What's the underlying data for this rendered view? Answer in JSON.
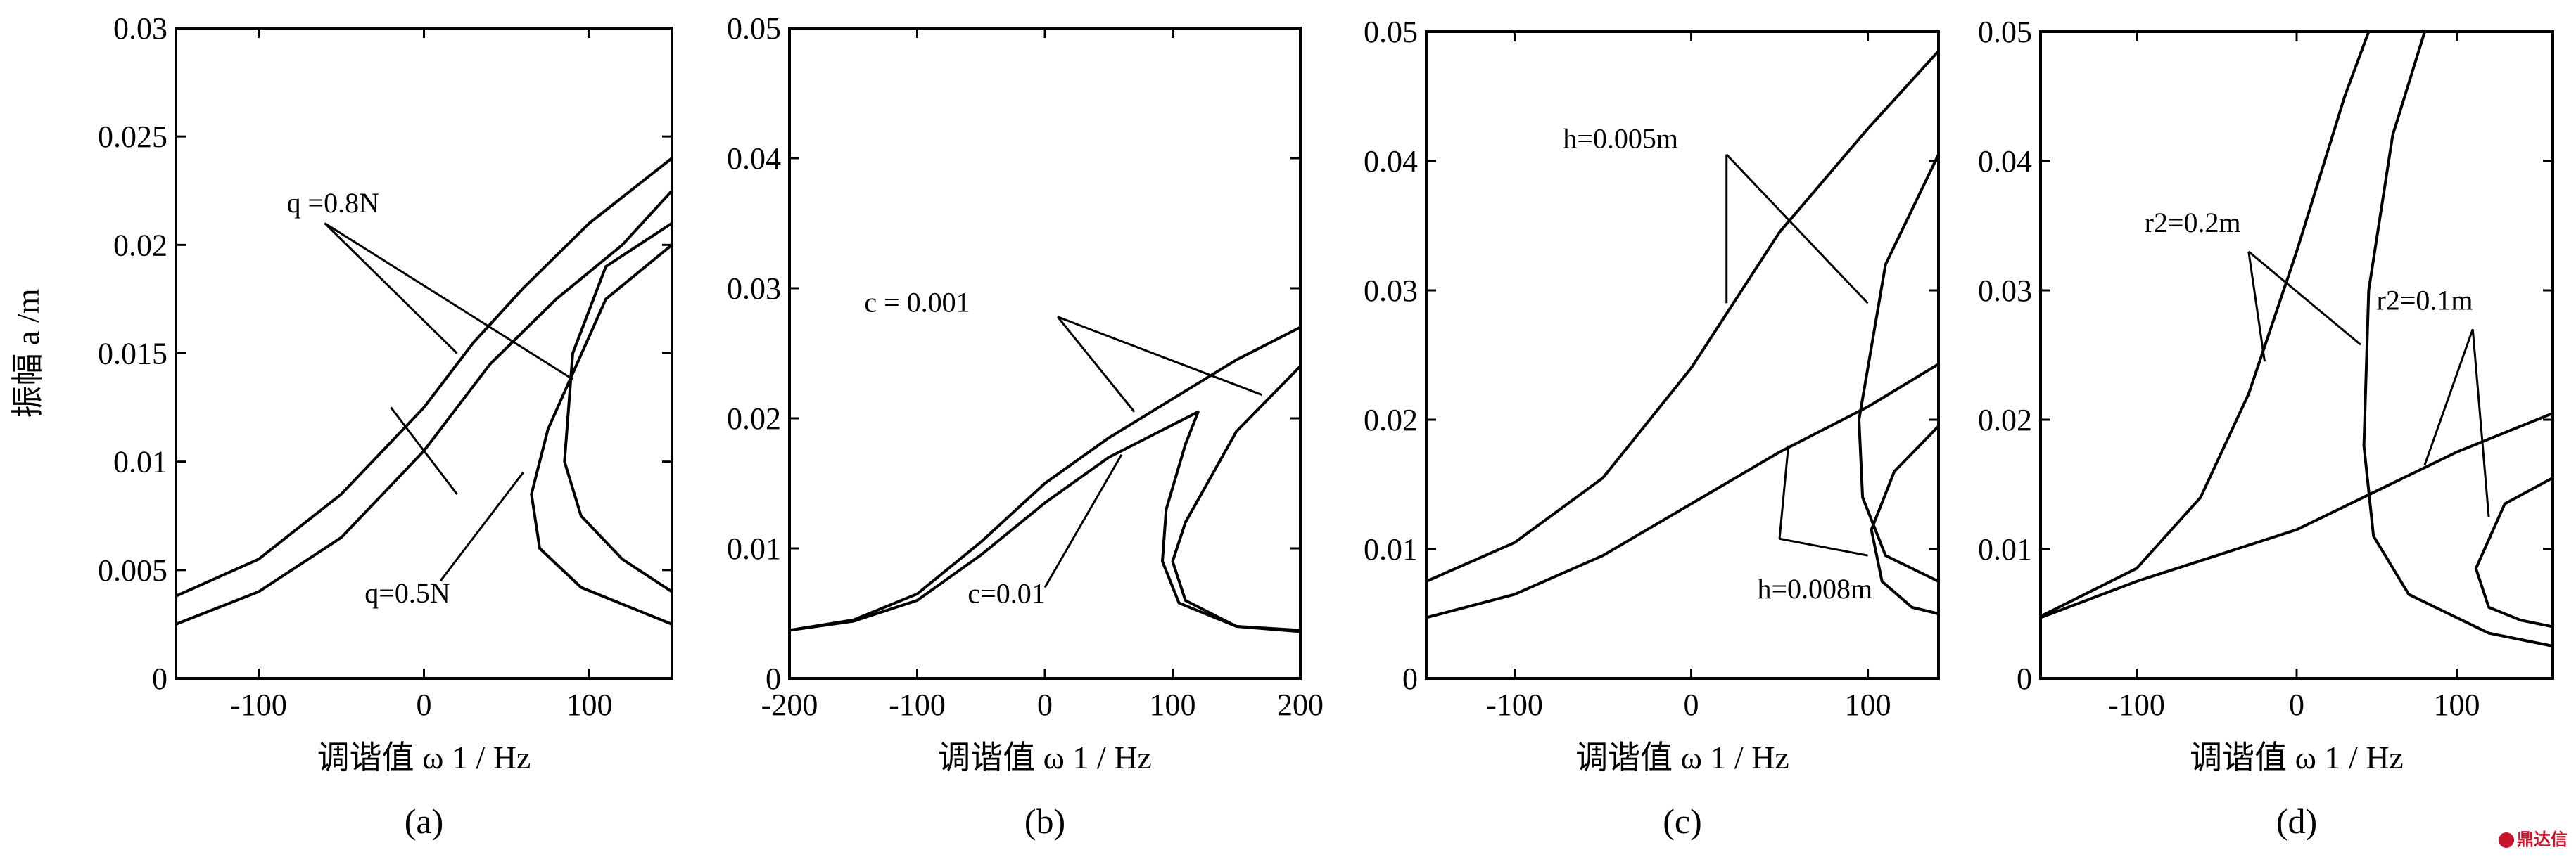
{
  "watermark": "鼎达信",
  "chart_data": [
    {
      "type": "line",
      "panel": "(a)",
      "ylabel": "振幅 a /m",
      "xlabel": "调谐值 ω 1 / Hz",
      "xlim": [
        -150,
        150
      ],
      "ylim": [
        0,
        0.03
      ],
      "xticks": [
        -100,
        0,
        100
      ],
      "xtick_labels": [
        "-100",
        "0",
        "100"
      ],
      "yticks": [
        0,
        0.005,
        0.01,
        0.015,
        0.02,
        0.025,
        0.03
      ],
      "ytick_labels": [
        "0",
        "0.005",
        "0.01",
        "0.015",
        "0.02",
        "0.025",
        "0.03"
      ],
      "series": [
        {
          "name": "q =0.8N",
          "points": [
            [
              -150,
              0.0038
            ],
            [
              -100,
              0.0055
            ],
            [
              -50,
              0.0085
            ],
            [
              0,
              0.0125
            ],
            [
              30,
              0.0155
            ],
            [
              60,
              0.018
            ],
            [
              100,
              0.021
            ],
            [
              150,
              0.024
            ]
          ]
        },
        {
          "name": "q =0.8N",
          "points": [
            [
              150,
              0.021
            ],
            [
              110,
              0.019
            ],
            [
              90,
              0.015
            ],
            [
              85,
              0.01
            ],
            [
              95,
              0.0075
            ],
            [
              120,
              0.0055
            ],
            [
              150,
              0.004
            ]
          ]
        },
        {
          "name": "q=0.5N",
          "points": [
            [
              -150,
              0.0025
            ],
            [
              -100,
              0.004
            ],
            [
              -50,
              0.0065
            ],
            [
              0,
              0.0105
            ],
            [
              40,
              0.0145
            ],
            [
              80,
              0.0175
            ],
            [
              120,
              0.02
            ],
            [
              150,
              0.0225
            ]
          ]
        },
        {
          "name": "q=0.5N",
          "points": [
            [
              150,
              0.02
            ],
            [
              110,
              0.0175
            ],
            [
              75,
              0.0115
            ],
            [
              65,
              0.0085
            ],
            [
              70,
              0.006
            ],
            [
              95,
              0.0042
            ],
            [
              150,
              0.0025
            ]
          ]
        }
      ],
      "annotations": [
        {
          "text": "q =0.8N",
          "x": -55,
          "y": 0.0215
        },
        {
          "text": "q=0.5N",
          "x": -10,
          "y": 0.0035
        }
      ]
    },
    {
      "type": "line",
      "panel": "(b)",
      "xlabel": "调谐值 ω 1 / Hz",
      "xlim": [
        -200,
        200
      ],
      "ylim": [
        0,
        0.05
      ],
      "xticks": [
        -200,
        -100,
        0,
        100,
        200
      ],
      "xtick_labels": [
        "-200",
        "-100",
        "0",
        "100",
        "200"
      ],
      "yticks": [
        0,
        0.01,
        0.02,
        0.03,
        0.04,
        0.05
      ],
      "ytick_labels": [
        "0",
        "0.01",
        "0.02",
        "0.03",
        "0.04",
        "0.05"
      ],
      "series": [
        {
          "name": "c = 0.001",
          "points": [
            [
              -200,
              0.0037
            ],
            [
              -150,
              0.0045
            ],
            [
              -100,
              0.0065
            ],
            [
              -50,
              0.0105
            ],
            [
              0,
              0.015
            ],
            [
              50,
              0.0185
            ],
            [
              100,
              0.0215
            ],
            [
              150,
              0.0245
            ],
            [
              200,
              0.027
            ]
          ]
        },
        {
          "name": "c = 0.001",
          "points": [
            [
              200,
              0.024
            ],
            [
              150,
              0.019
            ],
            [
              110,
              0.012
            ],
            [
              100,
              0.009
            ],
            [
              110,
              0.006
            ],
            [
              150,
              0.004
            ],
            [
              200,
              0.0037
            ]
          ]
        },
        {
          "name": "c=0.01",
          "points": [
            [
              -200,
              0.0037
            ],
            [
              -150,
              0.0044
            ],
            [
              -100,
              0.006
            ],
            [
              -50,
              0.0095
            ],
            [
              0,
              0.0135
            ],
            [
              50,
              0.017
            ],
            [
              100,
              0.0195
            ],
            [
              120,
              0.0205
            ],
            [
              110,
              0.018
            ],
            [
              95,
              0.013
            ],
            [
              92,
              0.009
            ],
            [
              105,
              0.0058
            ],
            [
              150,
              0.004
            ],
            [
              200,
              0.0036
            ]
          ]
        }
      ],
      "annotations": [
        {
          "text": "c = 0.001",
          "x": -100,
          "y": 0.0282
        },
        {
          "text": "c=0.01",
          "x": -30,
          "y": 0.0058
        }
      ]
    },
    {
      "type": "line",
      "panel": "(c)",
      "xlabel": "调谐值 ω 1 / Hz",
      "xlim": [
        -150,
        140
      ],
      "ylim": [
        0,
        0.05
      ],
      "xticks": [
        -100,
        0,
        100
      ],
      "xtick_labels": [
        "-100",
        "0",
        "100"
      ],
      "yticks": [
        0,
        0.01,
        0.02,
        0.03,
        0.04,
        0.05
      ],
      "ytick_labels": [
        "0",
        "0.01",
        "0.02",
        "0.03",
        "0.04",
        "0.05"
      ],
      "series": [
        {
          "name": "h=0.005m",
          "points": [
            [
              -150,
              0.0075
            ],
            [
              -100,
              0.0105
            ],
            [
              -50,
              0.0155
            ],
            [
              0,
              0.024
            ],
            [
              50,
              0.0345
            ],
            [
              100,
              0.0425
            ],
            [
              140,
              0.0485
            ]
          ]
        },
        {
          "name": "h=0.005m",
          "points": [
            [
              140,
              0.0405
            ],
            [
              110,
              0.032
            ],
            [
              95,
              0.02
            ],
            [
              97,
              0.014
            ],
            [
              110,
              0.0095
            ],
            [
              140,
              0.0075
            ]
          ]
        },
        {
          "name": "h=0.008m",
          "points": [
            [
              -150,
              0.0047
            ],
            [
              -100,
              0.0065
            ],
            [
              -50,
              0.0095
            ],
            [
              0,
              0.0135
            ],
            [
              50,
              0.0175
            ],
            [
              100,
              0.021
            ],
            [
              140,
              0.0243
            ]
          ]
        },
        {
          "name": "h=0.008m",
          "points": [
            [
              140,
              0.0195
            ],
            [
              115,
              0.016
            ],
            [
              102,
              0.0115
            ],
            [
              108,
              0.0075
            ],
            [
              125,
              0.0055
            ],
            [
              140,
              0.005
            ]
          ]
        }
      ],
      "annotations": [
        {
          "text": "h=0.005m",
          "x": -40,
          "y": 0.041
        },
        {
          "text": "h=0.008m",
          "x": 70,
          "y": 0.0062
        }
      ]
    },
    {
      "type": "line",
      "panel": "(d)",
      "xlabel": "调谐值 ω 1 / Hz",
      "xlim": [
        -160,
        160
      ],
      "ylim": [
        0,
        0.05
      ],
      "xticks": [
        -100,
        0,
        100
      ],
      "xtick_labels": [
        "-100",
        "0",
        "100"
      ],
      "yticks": [
        0,
        0.01,
        0.02,
        0.03,
        0.04,
        0.05
      ],
      "ytick_labels": [
        "0",
        "0.01",
        "0.02",
        "0.03",
        "0.04",
        "0.05"
      ],
      "series": [
        {
          "name": "r2=0.2m",
          "points": [
            [
              -160,
              0.0048
            ],
            [
              -100,
              0.0085
            ],
            [
              -60,
              0.014
            ],
            [
              -30,
              0.022
            ],
            [
              0,
              0.033
            ],
            [
              30,
              0.045
            ],
            [
              45,
              0.05
            ]
          ]
        },
        {
          "name": "r2=0.2m",
          "points": [
            [
              80,
              0.05
            ],
            [
              60,
              0.042
            ],
            [
              45,
              0.03
            ],
            [
              42,
              0.018
            ],
            [
              48,
              0.011
            ],
            [
              70,
              0.0065
            ],
            [
              120,
              0.0035
            ],
            [
              160,
              0.0025
            ]
          ]
        },
        {
          "name": "r2=0.1m",
          "points": [
            [
              -160,
              0.0047
            ],
            [
              -100,
              0.0075
            ],
            [
              -50,
              0.0095
            ],
            [
              0,
              0.0115
            ],
            [
              50,
              0.0145
            ],
            [
              100,
              0.0175
            ],
            [
              160,
              0.0205
            ]
          ]
        },
        {
          "name": "r2=0.1m",
          "points": [
            [
              160,
              0.0155
            ],
            [
              130,
              0.0135
            ],
            [
              112,
              0.0085
            ],
            [
              120,
              0.0055
            ],
            [
              140,
              0.0045
            ],
            [
              160,
              0.004
            ]
          ]
        }
      ],
      "annotations": [
        {
          "text": "r2=0.2m",
          "x": -65,
          "y": 0.0345
        },
        {
          "text": "r2=0.1m",
          "x": 80,
          "y": 0.0285
        }
      ]
    }
  ]
}
